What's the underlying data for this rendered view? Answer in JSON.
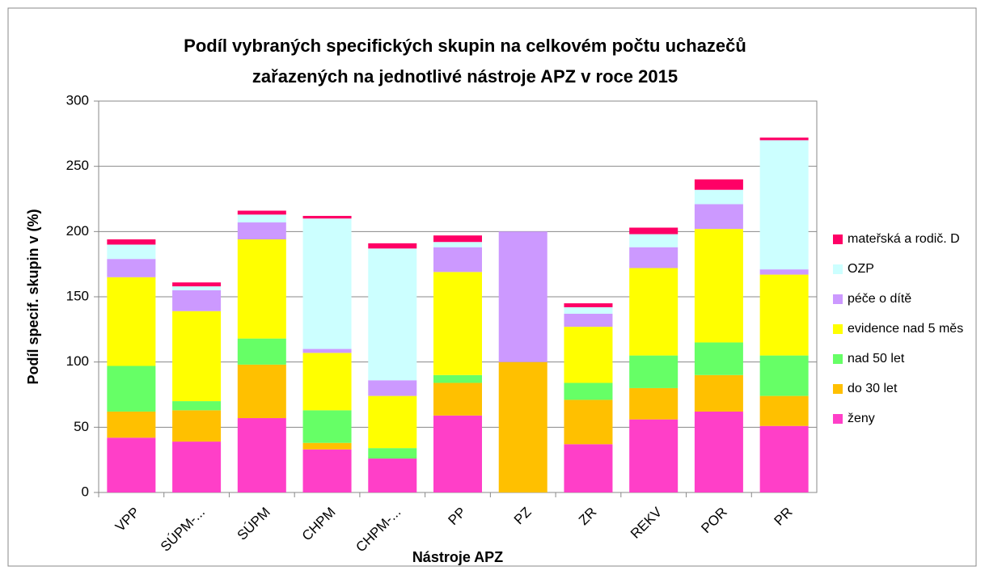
{
  "chart_data": {
    "type": "stacked_bar",
    "title": [
      "Podíl vybraných specifických skupin na celkovém počtu uchazečů",
      "zařazených na jednotlivé nástroje APZ v roce 2015"
    ],
    "xlabel": "Nástroje APZ",
    "ylabel": "Podíl specif. skupin v (%)",
    "categories": [
      "VPP",
      "SÚPM-...",
      "SÚPM",
      "CHPM",
      "CHPM-...",
      "PP",
      "PZ",
      "ZR",
      "REKV",
      "POR",
      "PR"
    ],
    "series": [
      {
        "name": "ženy",
        "color": "#ff3fc8",
        "values": [
          42,
          39,
          57,
          33,
          26,
          59,
          0,
          37,
          56,
          62,
          51
        ]
      },
      {
        "name": "do 30 let",
        "color": "#ffc000",
        "values": [
          20,
          24,
          41,
          5,
          0,
          25,
          100,
          34,
          24,
          28,
          23
        ]
      },
      {
        "name": "nad 50 let",
        "color": "#66ff66",
        "values": [
          35,
          7,
          20,
          25,
          8,
          6,
          0,
          13,
          25,
          25,
          31
        ]
      },
      {
        "name": "evidence nad 5 měs",
        "color": "#ffff00",
        "values": [
          68,
          69,
          76,
          44,
          40,
          79,
          0,
          43,
          67,
          87,
          62
        ]
      },
      {
        "name": "péče o dítě",
        "color": "#cc99ff",
        "values": [
          14,
          16,
          13,
          3,
          12,
          19,
          100,
          10,
          16,
          19,
          4
        ]
      },
      {
        "name": "OZP",
        "color": "#ccffff",
        "values": [
          11,
          3,
          6,
          100,
          101,
          4,
          0,
          5,
          10,
          11,
          99
        ]
      },
      {
        "name": "mateřská a rodič. D",
        "color": "#ff0066",
        "values": [
          4,
          3,
          3,
          2,
          4,
          5,
          0,
          3,
          5,
          8,
          2
        ]
      }
    ],
    "ylim": [
      0,
      300
    ],
    "yticks": [
      0,
      50,
      100,
      150,
      200,
      250,
      300
    ],
    "grid": true,
    "legend": "right"
  }
}
